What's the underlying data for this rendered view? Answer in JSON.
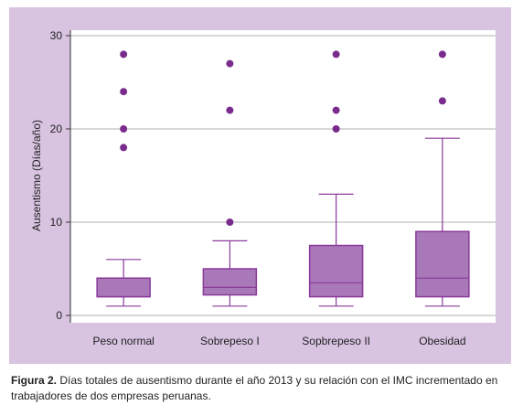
{
  "caption": {
    "label": "Figura 2.",
    "text": "Días totales de ausentismo durante el año 2013 y su relación con el IMC incrementado en trabajadores de dos empresas peruanas."
  },
  "colors": {
    "panel_background": "#d8c3e1",
    "box_fill": "#a878b8",
    "box_stroke": "#8a3a9a",
    "outlier": "#7a2c8e",
    "gridline": "#b0b0b0"
  },
  "chart_data": {
    "type": "boxplot",
    "title": "",
    "xlabel": "",
    "ylabel": "Ausentismo (Días/año)",
    "ylim": [
      0,
      30
    ],
    "yticks": [
      0,
      10,
      20,
      30
    ],
    "grid": true,
    "categories": [
      "Peso normal",
      "Sobrepeso I",
      "Sopbrepeso II",
      "Obesidad"
    ],
    "boxes": [
      {
        "category": "Peso normal",
        "min": 1,
        "q1": 2,
        "median": 2,
        "q3": 4,
        "max": 6,
        "outliers": [
          18,
          20,
          24,
          28
        ]
      },
      {
        "category": "Sobrepeso I",
        "min": 1,
        "q1": 2.2,
        "median": 3,
        "q3": 5,
        "max": 8,
        "outliers": [
          10,
          22,
          27
        ]
      },
      {
        "category": "Sopbrepeso II",
        "min": 1,
        "q1": 2,
        "median": 3.5,
        "q3": 7.5,
        "max": 13,
        "outliers": [
          20,
          22,
          28
        ]
      },
      {
        "category": "Obesidad",
        "min": 1,
        "q1": 2,
        "median": 4,
        "q3": 9,
        "max": 19,
        "outliers": [
          23,
          28
        ]
      }
    ]
  }
}
